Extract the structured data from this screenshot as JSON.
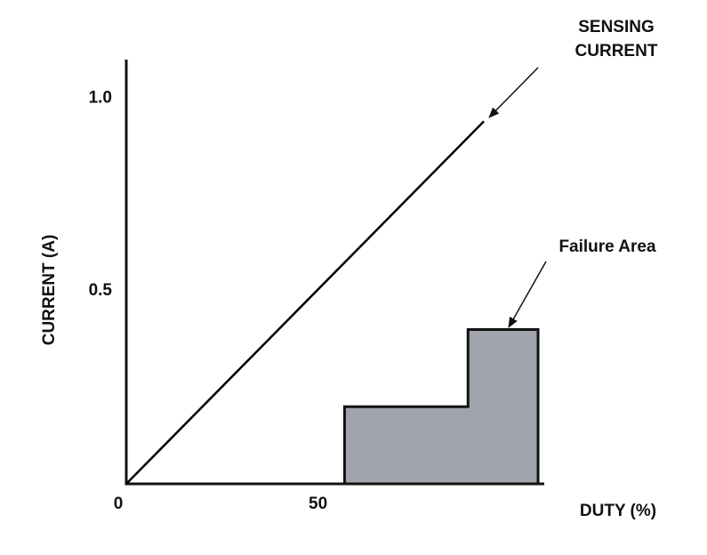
{
  "chart_data": {
    "type": "line",
    "xlabel": "DUTY (%)",
    "ylabel": "CURRENT (A)",
    "xlim": [
      0,
      108
    ],
    "ylim": [
      0,
      1.1
    ],
    "xticks": [
      0,
      50
    ],
    "yticks": [
      {
        "value": 0.5,
        "label": "0.5"
      },
      {
        "value": 1,
        "label": "1.0"
      }
    ],
    "series": [
      {
        "name": "SENSING CURRENT",
        "label_lines": [
          "SENSING",
          "CURRENT"
        ],
        "color": "#000000",
        "x": [
          0,
          92.4
        ],
        "values": [
          0,
          0.94
        ]
      }
    ],
    "regions": [
      {
        "name": "Failure Area",
        "color": "#a0a4ab",
        "x": [
          56.4,
          56.4,
          88.3,
          88.3,
          106.4,
          106.4
        ],
        "values": [
          0,
          0.2,
          0.2,
          0.4,
          0.4,
          0
        ]
      }
    ]
  }
}
